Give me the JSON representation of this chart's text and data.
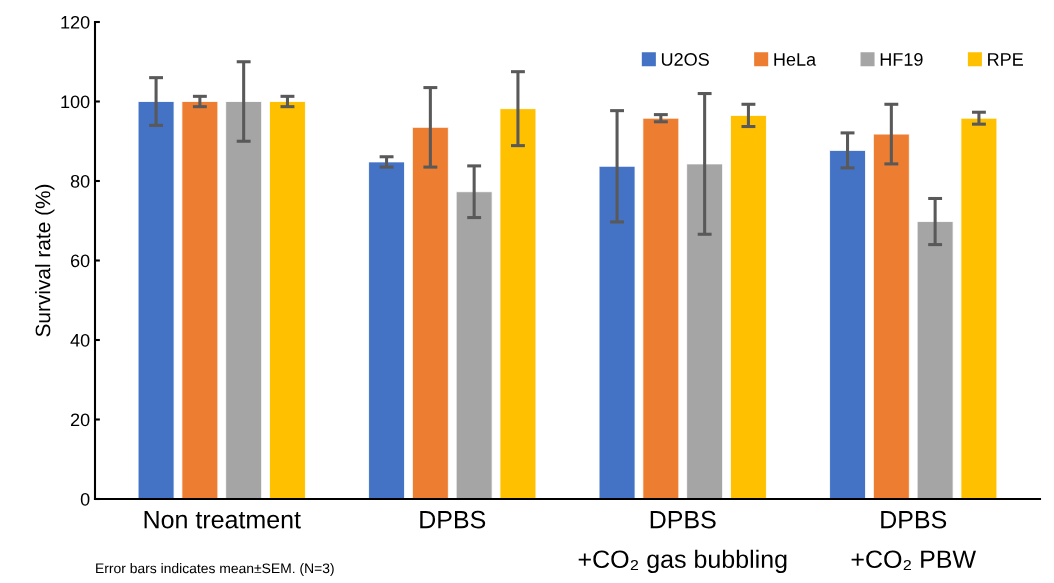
{
  "chart_data": {
    "type": "bar",
    "ylabel": "Survival rate (%)",
    "categories": [
      "Non treatment",
      "DPBS",
      "DPBS\n+CO₂ gas bubbling",
      "DPBS\n+CO₂ PBW"
    ],
    "series": [
      {
        "name": "U2OS",
        "color": "#4472c4",
        "values": [
          100,
          84.8,
          83.7,
          87.7
        ],
        "errors": [
          6,
          1.3,
          14,
          4.4
        ]
      },
      {
        "name": "HeLa",
        "color": "#ed7d31",
        "values": [
          100,
          93.5,
          95.8,
          91.8
        ],
        "errors": [
          1.3,
          10,
          0.9,
          7.5
        ]
      },
      {
        "name": "HF19",
        "color": "#a5a5a5",
        "values": [
          100,
          77.3,
          84.3,
          69.8
        ],
        "errors": [
          10,
          6.5,
          17.7,
          5.8
        ]
      },
      {
        "name": "RPE",
        "color": "#ffc000",
        "values": [
          100,
          98.2,
          96.5,
          95.8
        ],
        "errors": [
          1.3,
          9.3,
          2.8,
          1.5
        ]
      }
    ],
    "ylim": [
      0,
      120
    ],
    "yticks": [
      0,
      20,
      40,
      60,
      80,
      100,
      120
    ],
    "grid": false,
    "legend": "top right",
    "annotations": [
      "Error bars indicates mean±SEM. (N=3)"
    ]
  }
}
